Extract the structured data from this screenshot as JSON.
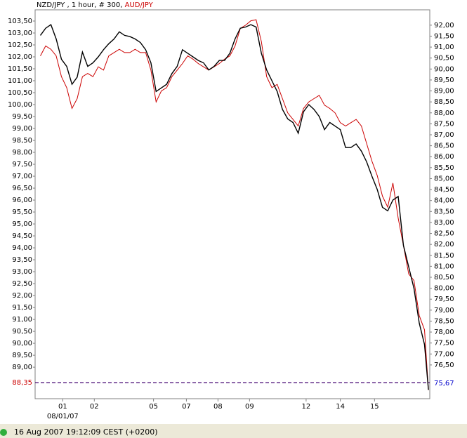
{
  "chart_data": {
    "type": "line",
    "title_info": " , 1 hour, # 300, ",
    "x": [
      4,
      8,
      12,
      16,
      20,
      24,
      28,
      32,
      36,
      40,
      44,
      48,
      52,
      56,
      60,
      64,
      68,
      72,
      76,
      80,
      84,
      88,
      92,
      96,
      100,
      104,
      108,
      112,
      116,
      120,
      124,
      128,
      132,
      136,
      140,
      144,
      148,
      152,
      156,
      160,
      164,
      168,
      172,
      176,
      180,
      184,
      188,
      192,
      196,
      200,
      204,
      208,
      212,
      216,
      220,
      224,
      228,
      232,
      236,
      240,
      244,
      248,
      252,
      256,
      260,
      264,
      268,
      272,
      276,
      280,
      284,
      288,
      292,
      296,
      299
    ],
    "xlim": [
      0,
      300
    ],
    "xticks": [
      {
        "value": 21,
        "label": "01"
      },
      {
        "value": 45,
        "label": "02"
      },
      {
        "value": 90,
        "label": "05"
      },
      {
        "value": 115,
        "label": "07"
      },
      {
        "value": 139,
        "label": "08"
      },
      {
        "value": 163,
        "label": "09"
      },
      {
        "value": 206,
        "label": "12"
      },
      {
        "value": 232,
        "label": "14"
      },
      {
        "value": 258,
        "label": "15"
      }
    ],
    "date_label": "08/01/07",
    "ylim": [
      87.68,
      103.97
    ],
    "yticks": [
      {
        "value": 89,
        "label": "89,00"
      },
      {
        "value": 89.5,
        "label": "89,50"
      },
      {
        "value": 90,
        "label": "90,00"
      },
      {
        "value": 90.5,
        "label": "90,50"
      },
      {
        "value": 91,
        "label": "91,00"
      },
      {
        "value": 91.5,
        "label": "91,50"
      },
      {
        "value": 92,
        "label": "92,00"
      },
      {
        "value": 92.5,
        "label": "92,50"
      },
      {
        "value": 93,
        "label": "93,00"
      },
      {
        "value": 93.5,
        "label": "93,50"
      },
      {
        "value": 94,
        "label": "94,00"
      },
      {
        "value": 94.5,
        "label": "94,50"
      },
      {
        "value": 95,
        "label": "95,00"
      },
      {
        "value": 95.5,
        "label": "95,50"
      },
      {
        "value": 96,
        "label": "96,00"
      },
      {
        "value": 96.5,
        "label": "96,50"
      },
      {
        "value": 97,
        "label": "97,00"
      },
      {
        "value": 97.5,
        "label": "97,50"
      },
      {
        "value": 98,
        "label": "98,00"
      },
      {
        "value": 98.5,
        "label": "98,50"
      },
      {
        "value": 99,
        "label": "99,00"
      },
      {
        "value": 99.5,
        "label": "99,50"
      },
      {
        "value": 100,
        "label": "100,00"
      },
      {
        "value": 100.5,
        "label": "100,50"
      },
      {
        "value": 101,
        "label": "101,00"
      },
      {
        "value": 101.5,
        "label": "101,50"
      },
      {
        "value": 102,
        "label": "102,00"
      },
      {
        "value": 102.5,
        "label": "102,50"
      },
      {
        "value": 103,
        "label": "103,00"
      },
      {
        "value": 103.5,
        "label": "103,50"
      }
    ],
    "y2lim": [
      74.96,
      92.7
    ],
    "y2ticks": [
      {
        "value": 76.5,
        "label": "76,50"
      },
      {
        "value": 77,
        "label": "77,00"
      },
      {
        "value": 77.5,
        "label": "77,50"
      },
      {
        "value": 78,
        "label": "78,00"
      },
      {
        "value": 78.5,
        "label": "78,50"
      },
      {
        "value": 79,
        "label": "79,00"
      },
      {
        "value": 79.5,
        "label": "79,50"
      },
      {
        "value": 80,
        "label": "80,00"
      },
      {
        "value": 80.5,
        "label": "80,50"
      },
      {
        "value": 81,
        "label": "81,00"
      },
      {
        "value": 81.5,
        "label": "81,50"
      },
      {
        "value": 82,
        "label": "82,00"
      },
      {
        "value": 82.5,
        "label": "82,50"
      },
      {
        "value": 83,
        "label": "83,00"
      },
      {
        "value": 83.5,
        "label": "83,50"
      },
      {
        "value": 84,
        "label": "84,00"
      },
      {
        "value": 84.5,
        "label": "84,50"
      },
      {
        "value": 85,
        "label": "85,00"
      },
      {
        "value": 85.5,
        "label": "85,50"
      },
      {
        "value": 86,
        "label": "86,00"
      },
      {
        "value": 86.5,
        "label": "86,50"
      },
      {
        "value": 87,
        "label": "87,00"
      },
      {
        "value": 87.5,
        "label": "87,50"
      },
      {
        "value": 88,
        "label": "88,00"
      },
      {
        "value": 88.5,
        "label": "88,50"
      },
      {
        "value": 89,
        "label": "89,00"
      },
      {
        "value": 89.5,
        "label": "89,50"
      },
      {
        "value": 90,
        "label": "90,00"
      },
      {
        "value": 90.5,
        "label": "90,50"
      },
      {
        "value": 91,
        "label": "91,00"
      },
      {
        "value": 91.5,
        "label": "91,50"
      },
      {
        "value": 92,
        "label": "92,00"
      }
    ],
    "series": [
      {
        "name": "NZD/JPY",
        "color": "#000000",
        "values": [
          102.9,
          103.2,
          103.35,
          102.75,
          101.9,
          101.6,
          100.85,
          101.15,
          102.2,
          101.6,
          101.75,
          102.0,
          102.3,
          102.55,
          102.75,
          103.05,
          102.9,
          102.85,
          102.75,
          102.6,
          102.3,
          101.75,
          100.55,
          100.7,
          100.85,
          101.3,
          101.6,
          102.3,
          102.15,
          102.0,
          101.85,
          101.75,
          101.45,
          101.6,
          101.85,
          101.85,
          102.15,
          102.75,
          103.2,
          103.25,
          103.35,
          103.25,
          102.15,
          101.45,
          101.0,
          100.55,
          99.8,
          99.4,
          99.25,
          98.8,
          99.7,
          100.0,
          99.8,
          99.5,
          98.95,
          99.25,
          99.1,
          98.95,
          98.2,
          98.2,
          98.35,
          98.05,
          97.6,
          97.0,
          96.45,
          95.7,
          95.55,
          96.0,
          96.15,
          94.1,
          93.2,
          92.3,
          90.85,
          89.95,
          88.05
        ]
      },
      {
        "name": "AUD/JPY",
        "color": "#cc0000",
        "axis": "y2",
        "values": [
          90.6,
          91.05,
          90.9,
          90.6,
          89.65,
          89.15,
          88.2,
          88.65,
          89.65,
          89.8,
          89.65,
          90.1,
          89.95,
          90.6,
          90.75,
          90.9,
          90.75,
          90.75,
          90.9,
          90.75,
          90.75,
          89.95,
          88.5,
          89.0,
          89.15,
          89.65,
          89.95,
          90.25,
          90.6,
          90.45,
          90.25,
          90.1,
          89.95,
          90.1,
          90.25,
          90.45,
          90.6,
          91.05,
          91.85,
          92.0,
          92.2,
          92.25,
          91.25,
          89.65,
          89.15,
          89.3,
          88.65,
          88.0,
          87.7,
          87.4,
          88.2,
          88.5,
          88.65,
          88.8,
          88.35,
          88.2,
          88.0,
          87.55,
          87.4,
          87.55,
          87.7,
          87.4,
          86.6,
          85.8,
          85.15,
          84.2,
          83.7,
          84.8,
          83.2,
          81.95,
          80.65,
          80.35,
          78.75,
          78.1,
          75.35
        ]
      }
    ],
    "last_value": {
      "value": 88.35,
      "label": "88,35"
    },
    "last_value_y2": {
      "value": 75.67,
      "label": "75,67"
    },
    "status": "16 Aug 2007 19:12:09  CEST (+0200)"
  }
}
